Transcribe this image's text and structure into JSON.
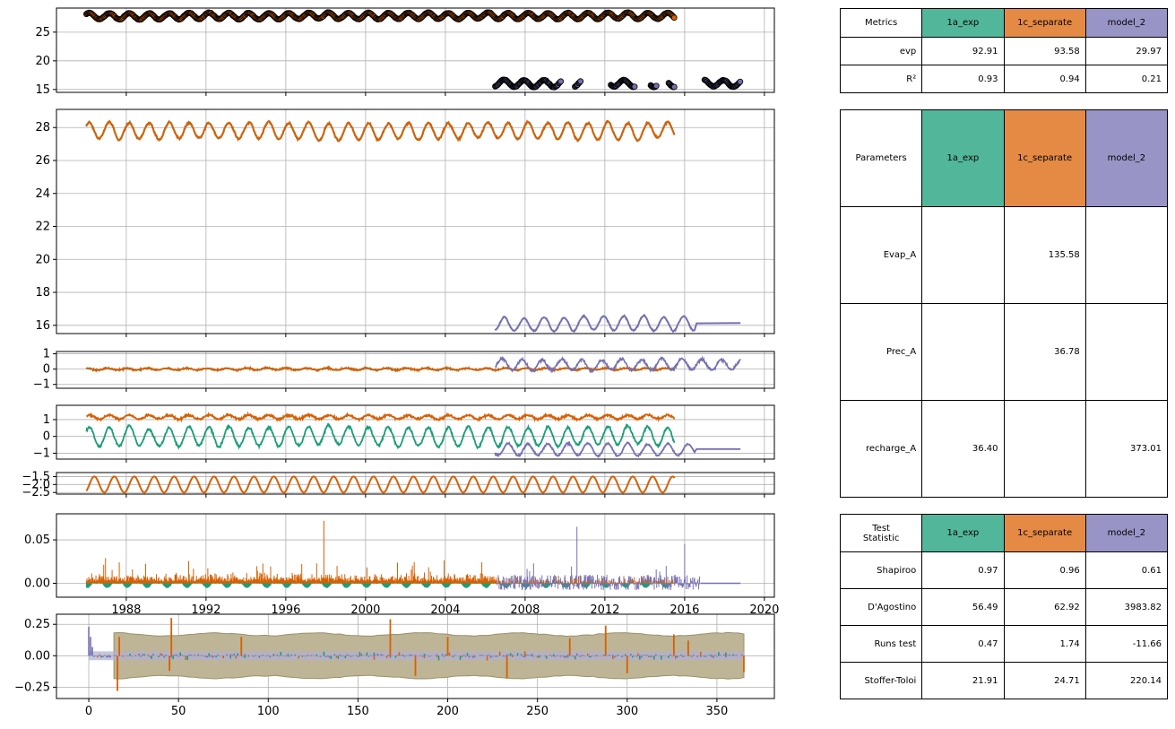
{
  "chart_data": [
    {
      "type": "scatter",
      "panel": "simulated-and-observed-heads",
      "ylim": [
        14.5,
        29.2
      ],
      "yticks": [
        "15",
        "20",
        "25"
      ],
      "grid": true,
      "xlim": [
        1984.5,
        2020.5
      ],
      "series": [
        {
          "model": "1a_exp",
          "color": "#1b9e77",
          "x_range": [
            1986.0,
            2015.5
          ],
          "y_mean": 27.8,
          "y_amplitude": 0.6
        },
        {
          "model": "1c_separate",
          "color": "#d95f02",
          "x_range": [
            1986.0,
            2015.5
          ],
          "y_mean": 27.8,
          "y_amplitude": 0.6
        },
        {
          "model": "model_2",
          "color": "#7570b3",
          "x_range": [
            2006.5,
            2018.8
          ],
          "y_mean": 16.1,
          "y_amplitude": 0.6
        }
      ]
    },
    {
      "type": "line",
      "panel": "simulated-heads",
      "ylim": [
        15.5,
        29.1
      ],
      "yticks": [
        "16",
        "18",
        "20",
        "22",
        "24",
        "26",
        "28"
      ],
      "grid": true,
      "series": [
        {
          "model": "1a_exp",
          "color": "#1b9e77",
          "x_range": [
            1986.0,
            2015.5
          ],
          "y_mean": 27.8,
          "y_amplitude": 0.5
        },
        {
          "model": "1c_separate",
          "color": "#d95f02",
          "x_range": [
            1986.0,
            2015.5
          ],
          "y_mean": 27.8,
          "y_amplitude": 0.5
        },
        {
          "model": "model_2",
          "color": "#7570b3",
          "x_range": [
            2006.5,
            2018.8
          ],
          "y_mean": 16.1,
          "y_amplitude": 0.45
        }
      ]
    },
    {
      "type": "line",
      "panel": "residuals",
      "ylim": [
        -1.25,
        1.15
      ],
      "yticks": [
        "1",
        "0",
        "−1"
      ],
      "grid": true
    },
    {
      "type": "line",
      "panel": "contributions",
      "ylim": [
        -1.35,
        1.85
      ],
      "yticks": [
        "1",
        "0",
        "−1"
      ],
      "grid": true
    },
    {
      "type": "line",
      "panel": "step-contribution",
      "ylim": [
        -2.6,
        -1.25
      ],
      "yticks": [
        "−1.5",
        "−2.0",
        "−2.5"
      ],
      "grid": true
    },
    {
      "type": "bar",
      "panel": "recharge",
      "ylim": [
        -0.016,
        0.08
      ],
      "yticks": [
        "0.05",
        "0.00"
      ],
      "xticks": [
        "1988",
        "1992",
        "1996",
        "2000",
        "2004",
        "2008",
        "2012",
        "2016",
        "2020"
      ],
      "grid": true
    },
    {
      "type": "bar",
      "panel": "autocorrelation",
      "xlim": [
        -18,
        382
      ],
      "ylim": [
        -0.34,
        0.33
      ],
      "yticks": [
        "0.25",
        "0.00",
        "−0.25"
      ],
      "xticks": [
        "0",
        "50",
        "100",
        "150",
        "200",
        "250",
        "300",
        "350"
      ],
      "grid": true
    }
  ],
  "tables": {
    "metrics": {
      "header": [
        "Metrics",
        "1a_exp",
        "1c_separate",
        "model_2"
      ],
      "rows": [
        [
          "evp",
          "92.91",
          "93.58",
          "29.97"
        ],
        [
          "R²",
          "0.93",
          "0.94",
          "0.21"
        ]
      ]
    },
    "parameters": {
      "header": [
        "Parameters",
        "1a_exp",
        "1c_separate",
        "model_2"
      ],
      "rows": [
        [
          "Evap_A",
          "",
          "135.58",
          ""
        ],
        [
          "Prec_A",
          "",
          "36.78",
          ""
        ],
        [
          "recharge_A",
          "36.40",
          "",
          "373.01"
        ]
      ]
    },
    "tests": {
      "header": [
        "Test\nStatistic",
        "1a_exp",
        "1c_separate",
        "model_2"
      ],
      "rows": [
        [
          "Shapiroo",
          "0.97",
          "0.96",
          "0.61"
        ],
        [
          "D'Agostino",
          "56.49",
          "62.92",
          "3983.82"
        ],
        [
          "Runs test",
          "0.47",
          "1.74",
          "-11.66"
        ],
        [
          "Stoffer-Toloi",
          "21.91",
          "24.71",
          "220.14"
        ]
      ]
    }
  },
  "colors": {
    "1a_exp": "#1b9e77",
    "1c_separate": "#d95f02",
    "model_2": "#7570b3",
    "header_1a_exp": "#52b69a",
    "header_1c_separate": "#e48a45",
    "header_model_2": "#9994c6",
    "confidence_band": "#bdb595"
  }
}
